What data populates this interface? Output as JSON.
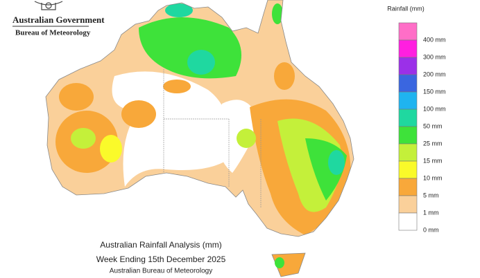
{
  "header": {
    "agency": "Australian Government",
    "bureau": "Bureau of Meteorology"
  },
  "legend": {
    "title": "Rainfall (mm)",
    "items": [
      {
        "label": "400 mm",
        "color": "#ff6ec7"
      },
      {
        "label": "300 mm",
        "color": "#ff1fe0"
      },
      {
        "label": "200 mm",
        "color": "#9b30e8"
      },
      {
        "label": "150 mm",
        "color": "#3a66e0"
      },
      {
        "label": "100 mm",
        "color": "#1fb4f0"
      },
      {
        "label": "50 mm",
        "color": "#1fd8a0"
      },
      {
        "label": "25 mm",
        "color": "#3ee23a"
      },
      {
        "label": "15 mm",
        "color": "#c4f03a"
      },
      {
        "label": "10 mm",
        "color": "#fafa2a"
      },
      {
        "label": "5 mm",
        "color": "#f8a83a"
      },
      {
        "label": "1 mm",
        "color": "#fad09a"
      },
      {
        "label": "0 mm",
        "color": "#ffffff"
      }
    ]
  },
  "caption": {
    "title": "Australian Rainfall Analysis (mm)",
    "subtitle": "Week Ending 15th December 2025",
    "source": "Australian Bureau of Meteorology"
  }
}
